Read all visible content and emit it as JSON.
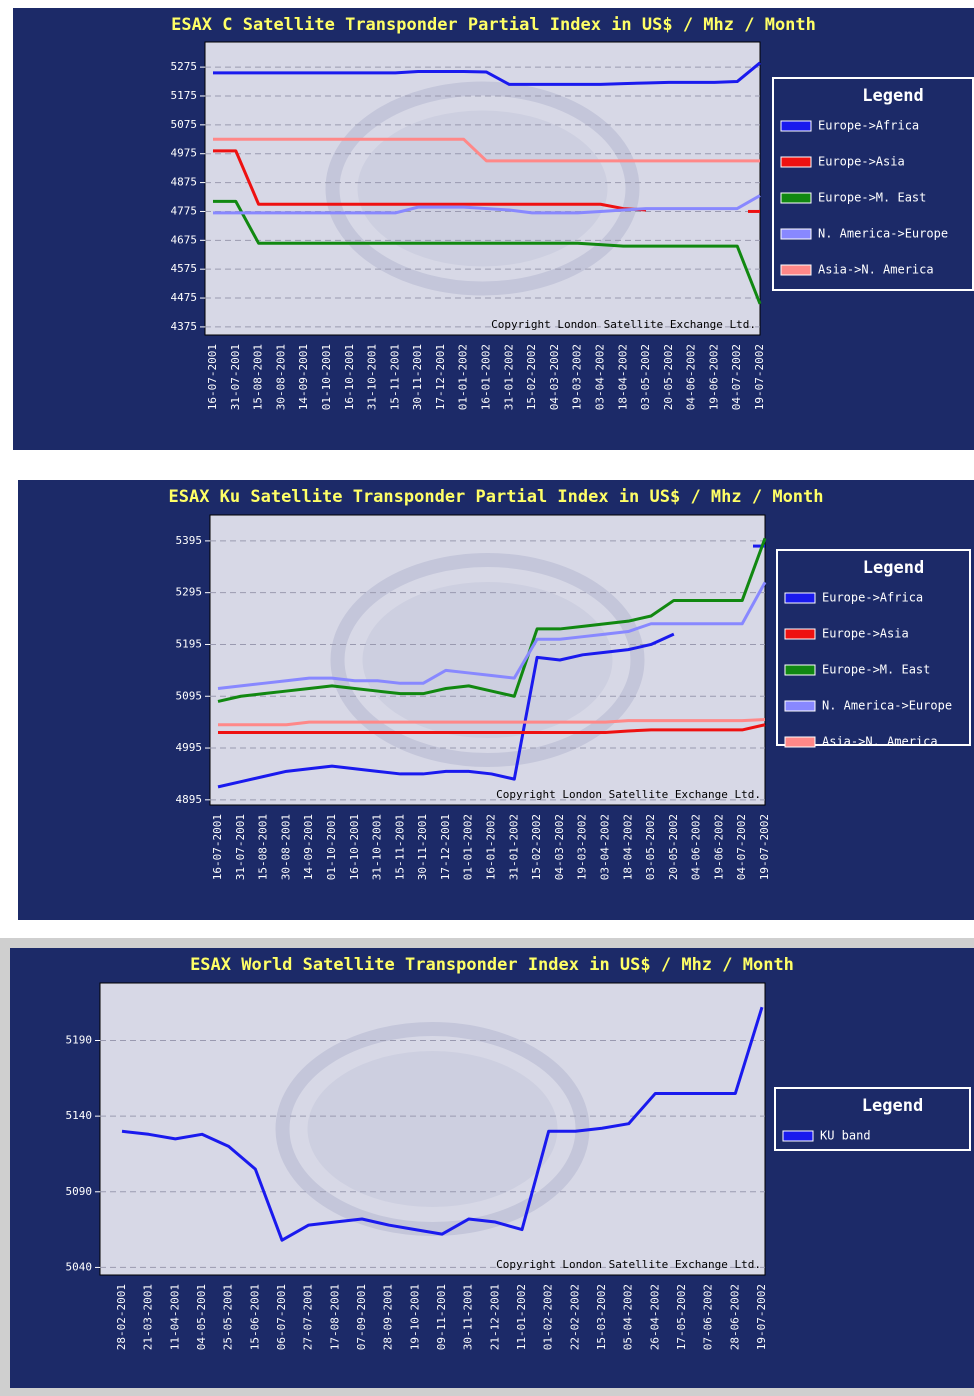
{
  "chart_data": [
    {
      "type": "line",
      "title": "ESAX C Satellite Transponder Partial Index in US$ / Mhz / Month",
      "annotation": "Copyright London Satellite Exchange Ltd.",
      "legend_title": "Legend",
      "grid": true,
      "categories": [
        "16-07-2001",
        "31-07-2001",
        "15-08-2001",
        "30-08-2001",
        "14-09-2001",
        "01-10-2001",
        "16-10-2001",
        "31-10-2001",
        "15-11-2001",
        "30-11-2001",
        "17-12-2001",
        "01-01-2002",
        "16-01-2002",
        "31-01-2002",
        "15-02-2002",
        "04-03-2002",
        "19-03-2002",
        "03-04-2002",
        "18-04-2002",
        "03-05-2002",
        "20-05-2002",
        "04-06-2002",
        "19-06-2002",
        "04-07-2002",
        "19-07-2002"
      ],
      "ylim": [
        4347,
        5362
      ],
      "yticks": [
        4375,
        4475,
        4575,
        4675,
        4775,
        4875,
        4975,
        5075,
        5175,
        5275
      ],
      "series": [
        {
          "name": "Europe->Africa",
          "color": "#1a1aee",
          "values": [
            5255,
            5255,
            5255,
            5255,
            5255,
            5255,
            5255,
            5255,
            5255,
            5260,
            5260,
            5260,
            5258,
            5215,
            5215,
            5215,
            5215,
            5215,
            5218,
            5220,
            5222,
            5222,
            5222,
            5225,
            5290
          ]
        },
        {
          "name": "Europe->Asia",
          "color": "#ee1111",
          "values": [
            4985,
            4985,
            4800,
            4800,
            4800,
            4800,
            4800,
            4800,
            4800,
            4800,
            4800,
            4800,
            4800,
            4800,
            4800,
            4800,
            4800,
            4800,
            4785,
            4780,
            null,
            null,
            null,
            null,
            4775
          ]
        },
        {
          "name": "Europe->M. East",
          "color": "#118811",
          "values": [
            4810,
            4810,
            4665,
            4665,
            4665,
            4665,
            4665,
            4665,
            4665,
            4665,
            4665,
            4665,
            4665,
            4665,
            4665,
            4665,
            4665,
            4660,
            4655,
            4655,
            4655,
            4655,
            4655,
            4655,
            4455
          ]
        },
        {
          "name": "N. America->Europe",
          "color": "#8888ff",
          "values": [
            4770,
            4770,
            4770,
            4770,
            4770,
            4770,
            4770,
            4770,
            4770,
            4790,
            4790,
            4790,
            4785,
            4780,
            4770,
            4770,
            4770,
            4775,
            4780,
            4785,
            4785,
            4785,
            4785,
            4785,
            4830
          ]
        },
        {
          "name": "Asia->N. America",
          "color": "#ff8888",
          "values": [
            5025,
            5025,
            5025,
            5025,
            5025,
            5025,
            5025,
            5025,
            5025,
            5025,
            5025,
            5025,
            4950,
            4950,
            4950,
            4950,
            4950,
            4950,
            4950,
            4950,
            4950,
            4950,
            4950,
            4950,
            4950
          ]
        }
      ]
    },
    {
      "type": "line",
      "title": "ESAX Ku Satellite Transponder Partial Index in US$ / Mhz / Month",
      "annotation": "Copyright London Satellite Exchange Ltd.",
      "legend_title": "Legend",
      "grid": true,
      "categories": [
        "16-07-2001",
        "31-07-2001",
        "15-08-2001",
        "30-08-2001",
        "14-09-2001",
        "01-10-2001",
        "16-10-2001",
        "31-10-2001",
        "15-11-2001",
        "30-11-2001",
        "17-12-2001",
        "01-01-2002",
        "16-01-2002",
        "31-01-2002",
        "15-02-2002",
        "04-03-2002",
        "19-03-2002",
        "03-04-2002",
        "18-04-2002",
        "03-05-2002",
        "20-05-2002",
        "04-06-2002",
        "19-06-2002",
        "04-07-2002",
        "19-07-2002"
      ],
      "ylim": [
        4885,
        5445
      ],
      "yticks": [
        4895,
        4995,
        5095,
        5195,
        5295,
        5395
      ],
      "series": [
        {
          "name": "Europe->Africa",
          "color": "#1a1aee",
          "values": [
            4920,
            4930,
            4940,
            4950,
            4955,
            4960,
            4955,
            4950,
            4945,
            4945,
            4950,
            4950,
            4945,
            4935,
            5170,
            5165,
            5175,
            5180,
            5185,
            5195,
            5215,
            null,
            null,
            null,
            5385
          ]
        },
        {
          "name": "Europe->Asia",
          "color": "#ee1111",
          "values": [
            5025,
            5025,
            5025,
            5025,
            5025,
            5025,
            5025,
            5025,
            5025,
            5025,
            5025,
            5025,
            5025,
            5025,
            5025,
            5025,
            5025,
            5025,
            5028,
            5030,
            5030,
            5030,
            5030,
            5030,
            5040
          ]
        },
        {
          "name": "Europe->M. East",
          "color": "#118811",
          "values": [
            5085,
            5095,
            5100,
            5105,
            5110,
            5115,
            5110,
            5105,
            5100,
            5100,
            5110,
            5115,
            5105,
            5095,
            5225,
            5225,
            5230,
            5235,
            5240,
            5250,
            5280,
            5280,
            5280,
            5280,
            5400
          ]
        },
        {
          "name": "N. America->Europe",
          "color": "#8888ff",
          "values": [
            5110,
            5115,
            5120,
            5125,
            5130,
            5130,
            5125,
            5125,
            5120,
            5120,
            5145,
            5140,
            5135,
            5130,
            5205,
            5205,
            5210,
            5215,
            5220,
            5235,
            5235,
            5235,
            5235,
            5235,
            5315
          ]
        },
        {
          "name": "Asia->N. America",
          "color": "#ff8888",
          "values": [
            5040,
            5040,
            5040,
            5040,
            5045,
            5045,
            5045,
            5045,
            5045,
            5045,
            5045,
            5045,
            5045,
            5045,
            5045,
            5045,
            5045,
            5045,
            5048,
            5048,
            5048,
            5048,
            5048,
            5048,
            5050
          ]
        }
      ]
    },
    {
      "type": "line",
      "title": "ESAX World Satellite Transponder Index in US$ / Mhz / Month",
      "annotation": "Copyright London Satellite Exchange Ltd.",
      "legend_title": "Legend",
      "grid": true,
      "categories": [
        "28-02-2001",
        "21-03-2001",
        "11-04-2001",
        "04-05-2001",
        "25-05-2001",
        "15-06-2001",
        "06-07-2001",
        "27-07-2001",
        "17-08-2001",
        "07-09-2001",
        "28-09-2001",
        "19-10-2001",
        "09-11-2001",
        "30-11-2001",
        "21-12-2001",
        "11-01-2002",
        "01-02-2002",
        "22-02-2002",
        "15-03-2002",
        "05-04-2002",
        "26-04-2002",
        "17-05-2002",
        "07-06-2002",
        "28-06-2002",
        "19-07-2002"
      ],
      "ylim": [
        5035,
        5228
      ],
      "yticks": [
        5040,
        5090,
        5140,
        5190
      ],
      "series": [
        {
          "name": "KU band",
          "color": "#1a1aee",
          "values": [
            5130,
            5128,
            5125,
            5128,
            5120,
            5105,
            5058,
            5068,
            5070,
            5072,
            5068,
            5065,
            5062,
            5072,
            5070,
            5065,
            5130,
            5130,
            5132,
            5135,
            5155,
            5155,
            5155,
            5155,
            5212
          ]
        }
      ]
    }
  ]
}
